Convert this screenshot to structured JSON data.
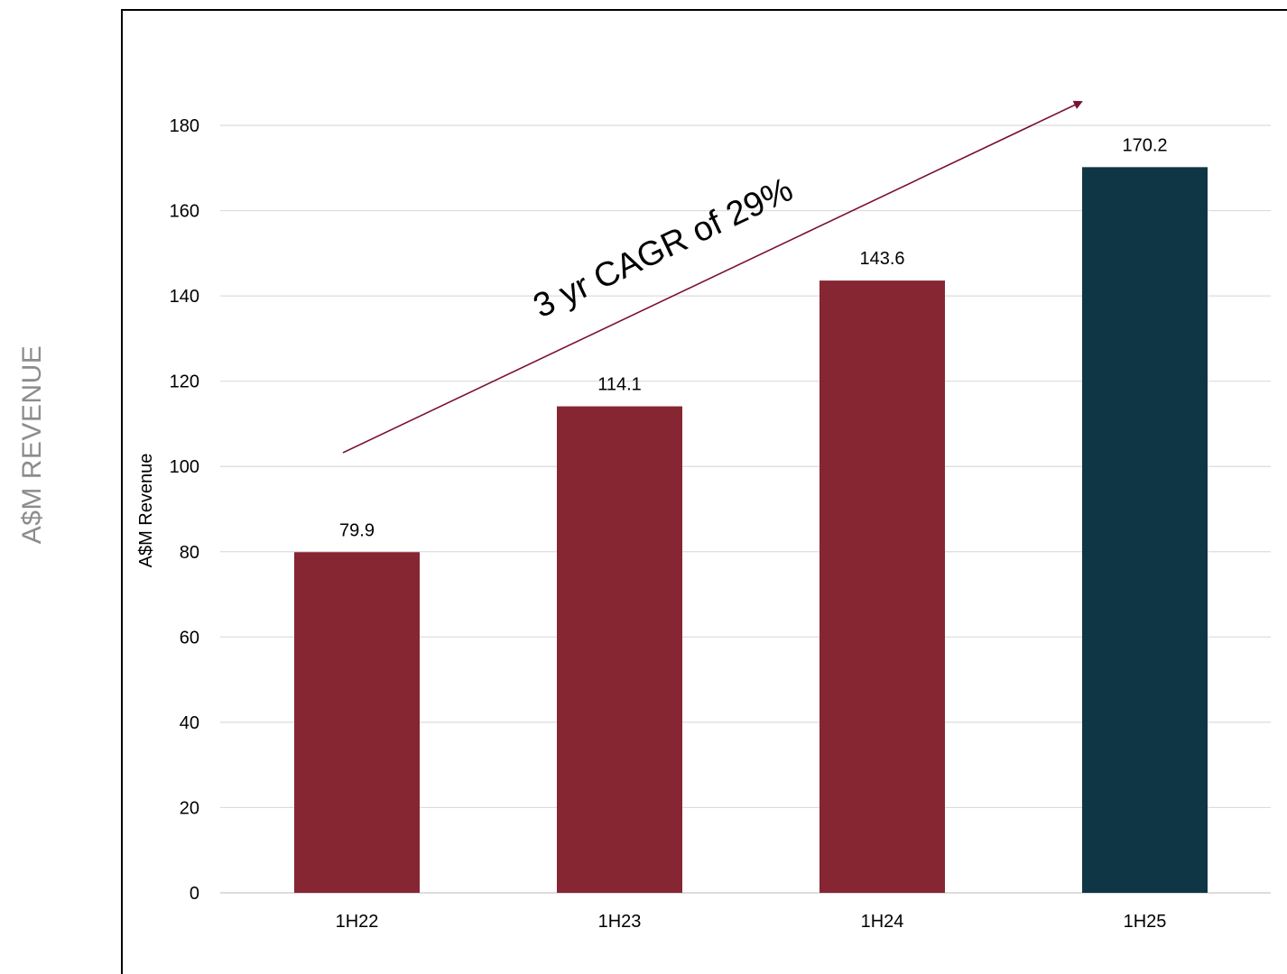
{
  "outer_label": "A$M REVENUE",
  "chart_data": {
    "type": "bar",
    "categories": [
      "1H22",
      "1H23",
      "1H24",
      "1H25"
    ],
    "values": [
      79.9,
      114.1,
      143.6,
      170.2
    ],
    "data_labels": [
      "79.9",
      "114.1",
      "143.6",
      "170.2"
    ],
    "ylabel": "A$M Revenue",
    "ylim": [
      0,
      180
    ],
    "yticks": [
      0,
      20,
      40,
      60,
      80,
      100,
      120,
      140,
      160,
      180
    ],
    "grid": true,
    "colors": [
      "#862632",
      "#862632",
      "#862632",
      "#0f3645"
    ],
    "annotation": {
      "text": "3 yr CAGR of 29%",
      "arrow_color": "#7a1033"
    }
  }
}
